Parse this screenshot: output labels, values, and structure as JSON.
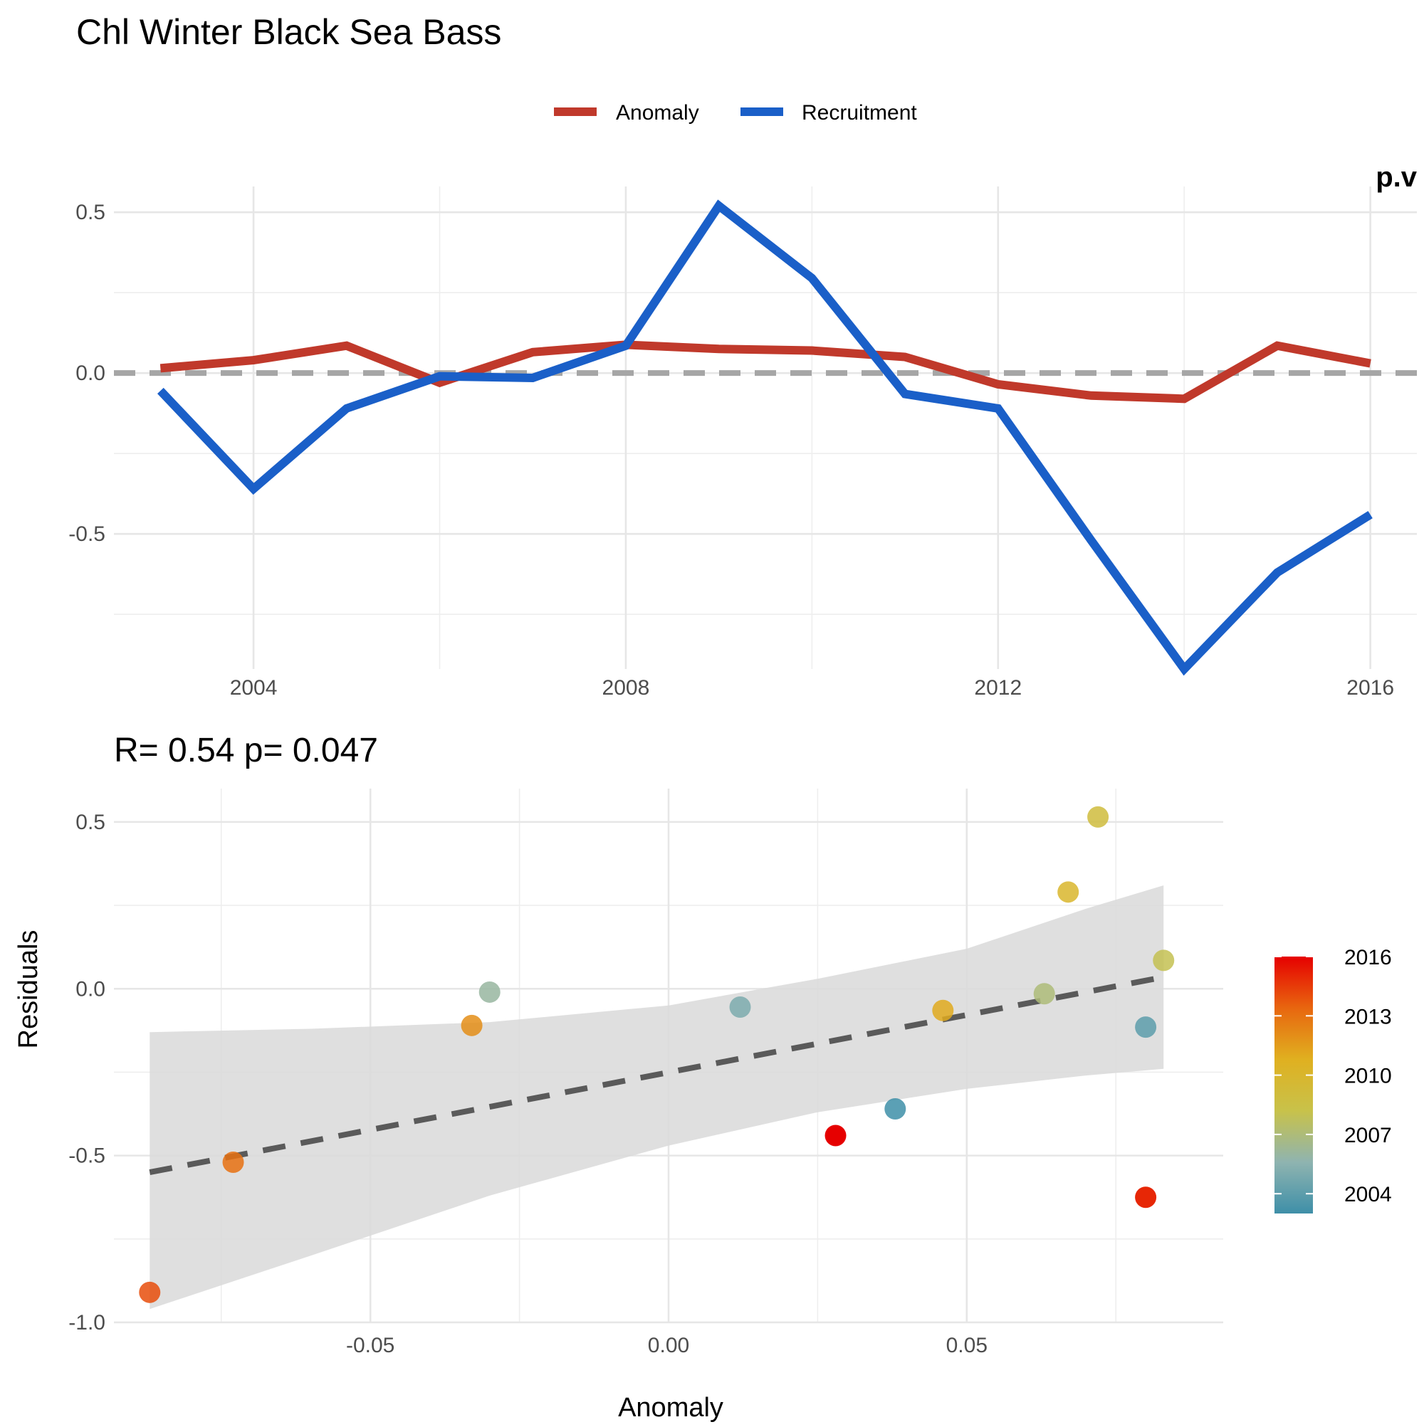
{
  "colors": {
    "anomaly": "#c0392b",
    "recruitment": "#1a5fc8",
    "zero_line": "#a6a6a6",
    "fit_line": "#5a5a5a",
    "ribbon": "#d9d9d9",
    "colorbar": [
      "#3e8fa8",
      "#8fb4b0",
      "#c8c24a",
      "#e0b020",
      "#e8660f",
      "#e60000"
    ]
  },
  "chart_data": [
    {
      "type": "line",
      "title": "Chl Winter Black Sea Bass",
      "corner_text": "p.v",
      "xlim": [
        2002.5,
        2016.5
      ],
      "ylim": [
        -0.92,
        0.58
      ],
      "x_ticks": [
        2004,
        2008,
        2012,
        2016
      ],
      "x_tick_labels": [
        "2004",
        "2008",
        "2012",
        "2016"
      ],
      "y_ticks": [
        0.5,
        0.0,
        -0.5
      ],
      "y_tick_labels": [
        "0.5",
        "0.0",
        "-0.5"
      ],
      "reference_line": {
        "y": 0,
        "style": "dashed"
      },
      "legend": {
        "position": "top",
        "entries": [
          "Anomaly",
          "Recruitment"
        ]
      },
      "grid": true,
      "x": [
        2003,
        2004,
        2005,
        2006,
        2007,
        2008,
        2009,
        2010,
        2011,
        2012,
        2013,
        2014,
        2015,
        2016
      ],
      "series": [
        {
          "name": "Anomaly",
          "values": [
            0.015,
            0.04,
            0.085,
            -0.03,
            0.065,
            0.088,
            0.075,
            0.07,
            0.05,
            -0.035,
            -0.07,
            -0.08,
            0.085,
            0.03
          ]
        },
        {
          "name": "Recruitment",
          "values": [
            -0.055,
            -0.36,
            -0.11,
            -0.01,
            -0.015,
            0.085,
            0.52,
            0.295,
            -0.065,
            -0.11,
            -0.52,
            -0.92,
            -0.62,
            -0.44
          ]
        }
      ]
    },
    {
      "type": "scatter",
      "title": "R= 0.54  p= 0.047",
      "xlabel": "Anomaly",
      "ylabel": "Residuals",
      "xlim": [
        -0.093,
        0.093
      ],
      "ylim": [
        -1.0,
        0.6
      ],
      "x_ticks": [
        -0.05,
        0.0,
        0.05
      ],
      "x_tick_labels": [
        "-0.05",
        "0.00",
        "0.05"
      ],
      "y_ticks": [
        0.5,
        0.0,
        -0.5,
        -1.0
      ],
      "y_tick_labels": [
        "0.5",
        "0.0",
        "-0.5",
        "-1.0"
      ],
      "grid": true,
      "points": [
        {
          "x": -0.087,
          "y": -0.91,
          "year": 2014
        },
        {
          "x": -0.073,
          "y": -0.52,
          "year": 2013
        },
        {
          "x": -0.033,
          "y": -0.11,
          "year": 2012
        },
        {
          "x": -0.03,
          "y": -0.01,
          "year": 2006
        },
        {
          "x": 0.012,
          "y": -0.055,
          "year": 2005
        },
        {
          "x": 0.028,
          "y": -0.44,
          "year": 2016
        },
        {
          "x": 0.038,
          "y": -0.36,
          "year": 2003
        },
        {
          "x": 0.046,
          "y": -0.065,
          "year": 2011
        },
        {
          "x": 0.063,
          "y": -0.015,
          "year": 2007
        },
        {
          "x": 0.067,
          "y": 0.29,
          "year": 2010
        },
        {
          "x": 0.072,
          "y": 0.515,
          "year": 2009
        },
        {
          "x": 0.08,
          "y": -0.115,
          "year": 2004
        },
        {
          "x": 0.08,
          "y": -0.625,
          "year": 2015
        },
        {
          "x": 0.083,
          "y": 0.085,
          "year": 2008
        }
      ],
      "fit": {
        "x0": -0.087,
        "y0": -0.55,
        "x1": 0.083,
        "y1": 0.035,
        "style": "dashed"
      },
      "ribbon": [
        {
          "x": -0.087,
          "lo": -0.96,
          "hi": -0.13
        },
        {
          "x": -0.06,
          "lo": -0.8,
          "hi": -0.12
        },
        {
          "x": -0.03,
          "lo": -0.62,
          "hi": -0.1
        },
        {
          "x": 0.0,
          "lo": -0.47,
          "hi": -0.05
        },
        {
          "x": 0.025,
          "lo": -0.37,
          "hi": 0.03
        },
        {
          "x": 0.05,
          "lo": -0.3,
          "hi": 0.12
        },
        {
          "x": 0.07,
          "lo": -0.26,
          "hi": 0.24
        },
        {
          "x": 0.083,
          "lo": -0.24,
          "hi": 0.31
        }
      ],
      "colorbar": {
        "min": 2003,
        "max": 2016,
        "tick_labels": [
          "2016",
          "2013",
          "2010",
          "2007",
          "2004"
        ],
        "ticks": [
          2016,
          2013,
          2010,
          2007,
          2004
        ]
      }
    }
  ]
}
